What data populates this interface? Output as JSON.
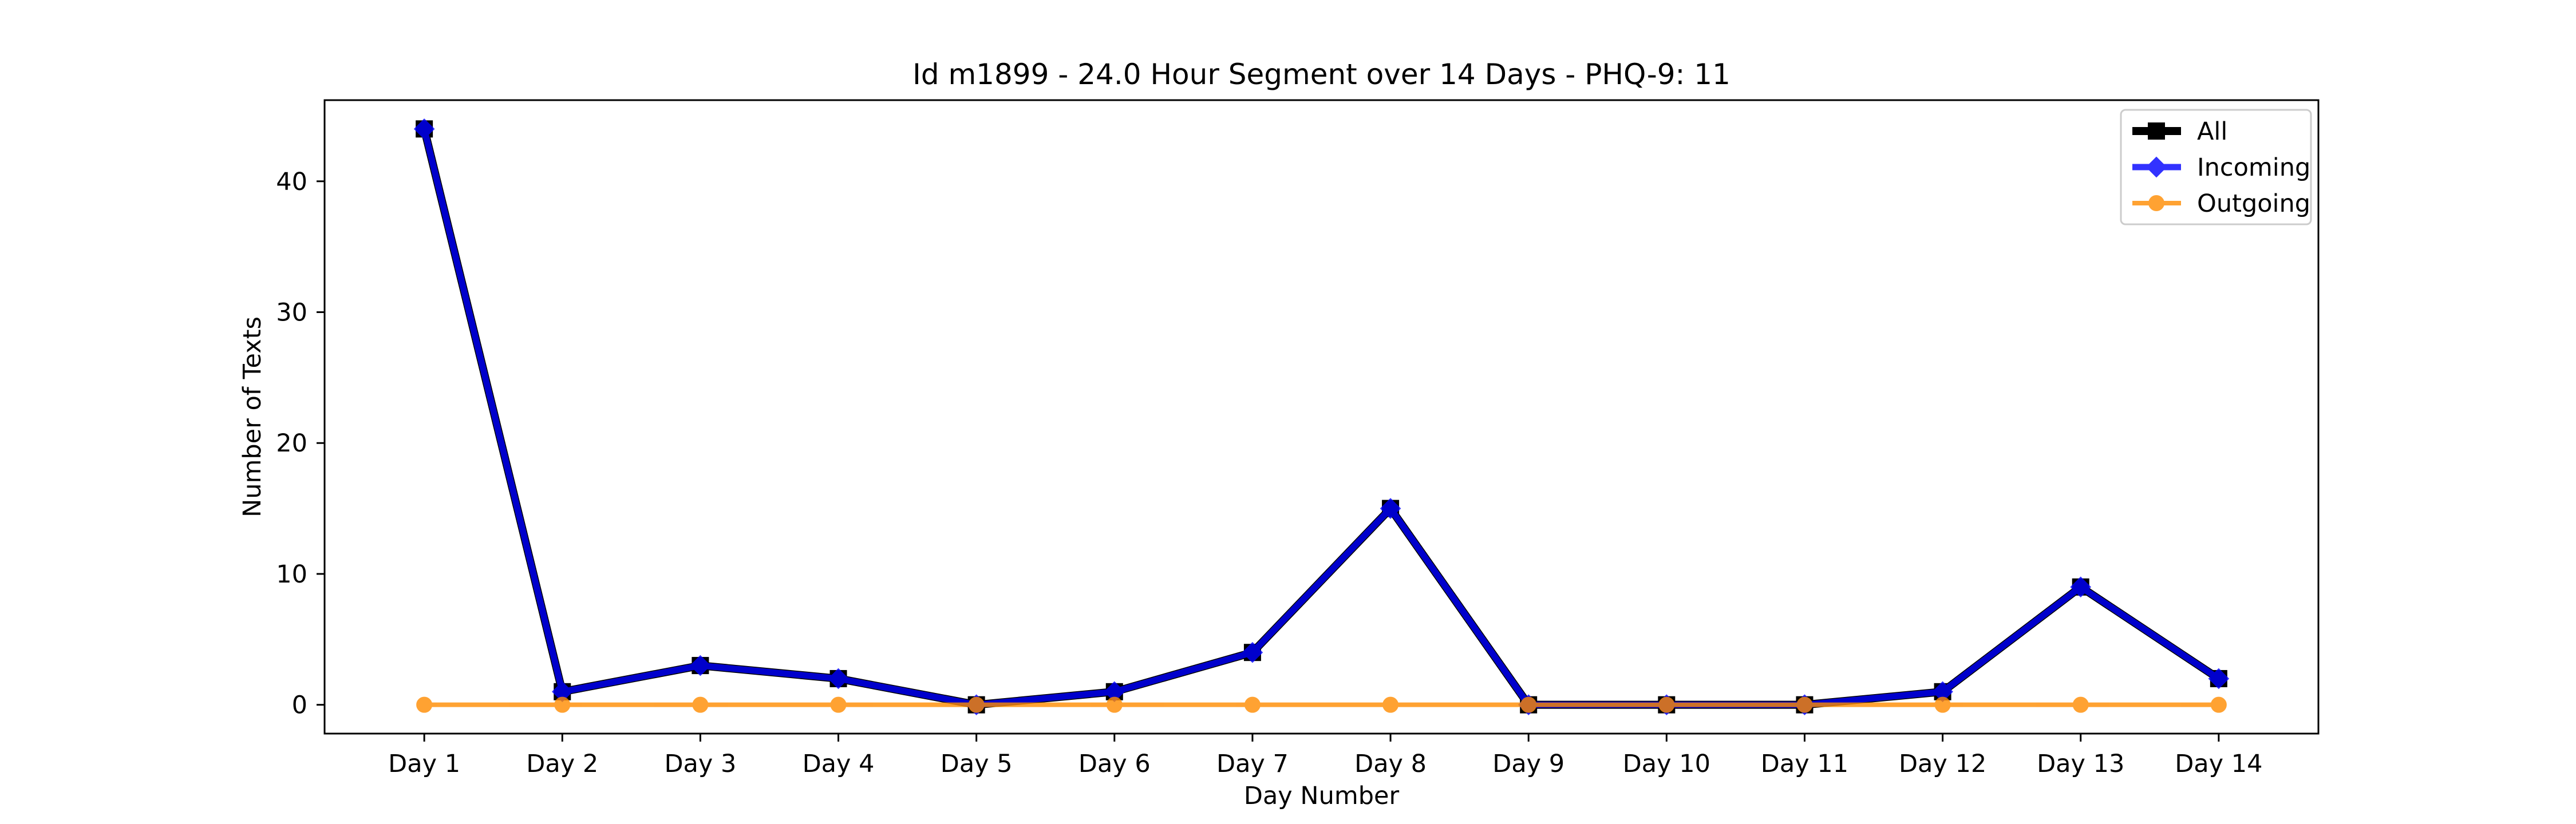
{
  "chart_data": {
    "type": "line",
    "title": "Id m1899 - 24.0 Hour Segment over 14 Days - PHQ-9: 11",
    "xlabel": "Day Number",
    "ylabel": "Number of Texts",
    "categories": [
      "Day 1",
      "Day 2",
      "Day 3",
      "Day 4",
      "Day 5",
      "Day 6",
      "Day 7",
      "Day 8",
      "Day 9",
      "Day 10",
      "Day 11",
      "Day 12",
      "Day 13",
      "Day 14"
    ],
    "ylim": [
      -2.2,
      46.2
    ],
    "yticks": [
      0,
      10,
      20,
      30,
      40
    ],
    "grid": false,
    "legend_position": "top-right",
    "series": [
      {
        "name": "All",
        "color": "#000000",
        "marker": "square",
        "values": [
          44,
          1,
          3,
          2,
          0,
          1,
          4,
          15,
          0,
          0,
          0,
          1,
          9,
          2
        ]
      },
      {
        "name": "Incoming",
        "color": "#0000ff",
        "marker": "diamond",
        "values": [
          44,
          1,
          3,
          2,
          0,
          1,
          4,
          15,
          0,
          0,
          0,
          1,
          9,
          2
        ]
      },
      {
        "name": "Outgoing",
        "color": "#ff8c00",
        "marker": "circle",
        "values": [
          0,
          0,
          0,
          0,
          0,
          0,
          0,
          0,
          0,
          0,
          0,
          0,
          0,
          0
        ]
      }
    ]
  }
}
